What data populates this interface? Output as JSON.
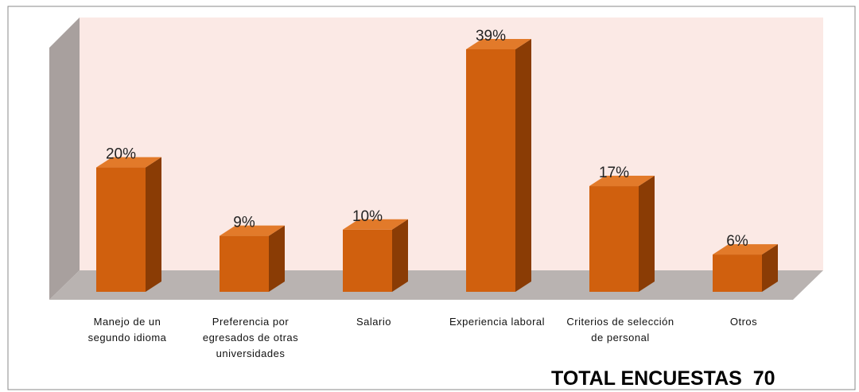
{
  "chart_data": {
    "type": "bar3d",
    "categories": [
      "Manejo de un segundo idioma",
      "Preferencia por egresados de otras universidades",
      "Salario",
      "Experiencia laboral",
      "Criterios de selección de personal",
      "Otros"
    ],
    "values": [
      20,
      9,
      10,
      39,
      17,
      6
    ],
    "value_labels": [
      "20%",
      "9%",
      "10%",
      "39%",
      "17%",
      "6%"
    ],
    "color": "#d0600e",
    "annotation": "TOTAL ENCUESTAS  70"
  }
}
